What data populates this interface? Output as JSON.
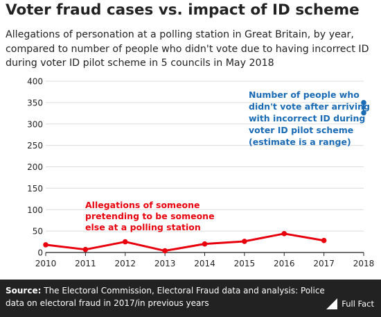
{
  "title": "Voter fraud cases vs. impact of ID scheme",
  "subtitle": "Allegations of personation at a polling station in Great Britain, by year, compared to number of people who didn't vote due to having incorrect ID during voter ID pilot scheme in 5 councils in May 2018",
  "chart_data": {
    "type": "line",
    "x": [
      2010,
      2011,
      2012,
      2013,
      2014,
      2015,
      2016,
      2017
    ],
    "series": [
      {
        "values": [
          18,
          7,
          25,
          4,
          20,
          26,
          44,
          28
        ],
        "color": "#e8000d"
      }
    ],
    "range_2018": {
      "x": 2018,
      "low": 326,
      "high": 350,
      "color": "#1a6bb5"
    },
    "annotations": {
      "allegations": [
        "Allegations of someone",
        "pretending to be someone",
        "else at a polling station"
      ],
      "pilot": [
        "Number of people who",
        "didn't vote after arriving",
        "with incorrect ID during",
        "voter ID pilot scheme",
        "(estimate is a range)"
      ]
    },
    "xticks": [
      "2010",
      "2011",
      "2012",
      "2013",
      "2014",
      "2015",
      "2016",
      "2017",
      "2018"
    ],
    "yticks": [
      "0",
      "50",
      "100",
      "150",
      "200",
      "250",
      "300",
      "350",
      "400"
    ],
    "xlim": [
      2010,
      2018
    ],
    "ylim": [
      0,
      400
    ],
    "grid": true
  },
  "footer": {
    "source_label": "Source:",
    "source_text": "The Electoral Commission, Electoral Fraud data and analysis: Police data on electoral fraud in 2017/in previous years",
    "logo_text": "Full Fact"
  }
}
